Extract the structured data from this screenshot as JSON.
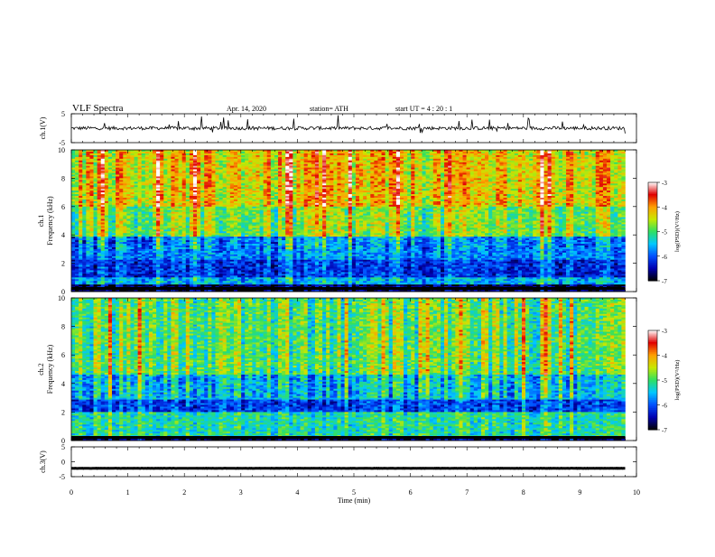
{
  "header": {
    "title": "VLF  Spectra",
    "date": "Apr. 14, 2020",
    "station": "station= ATH",
    "start": "start  UT  =   4  : 20 : 1"
  },
  "chart_data": [
    {
      "type": "line",
      "panel": "channel-1-waveform",
      "ylabel": "ch.1(V)",
      "x_range": [
        0,
        10
      ],
      "ylim": [
        -5,
        5
      ],
      "y_ticks": [
        "5",
        "-5"
      ],
      "description_values": {
        "mean": 0,
        "noise_amplitude": 1.2,
        "end_time_min": 9.8
      }
    },
    {
      "type": "heatmap",
      "panel": "channel-1-spectrogram",
      "ylabel": "ch.1\nFrequency  (kHz)",
      "x_range": [
        0,
        10
      ],
      "ylim": [
        0,
        10
      ],
      "y_ticks": [
        "0",
        "2",
        "4",
        "6",
        "8",
        "10"
      ],
      "colorbar": {
        "label": "log(PSD)(V²/Hz)",
        "range": [
          -7,
          -3
        ],
        "ticks": [
          "-3",
          "-4",
          "-5",
          "-6",
          "-7"
        ]
      },
      "bands": [
        {
          "from_khz": 0,
          "to_khz": 0.5,
          "level": -6.8
        },
        {
          "from_khz": 0.5,
          "to_khz": 1.0,
          "level": -5.6
        },
        {
          "from_khz": 1.0,
          "to_khz": 2.2,
          "level": -6.2
        },
        {
          "from_khz": 2.2,
          "to_khz": 3.9,
          "level": -5.8
        },
        {
          "from_khz": 3.9,
          "to_khz": 6.0,
          "level": -4.8
        },
        {
          "from_khz": 6.0,
          "to_khz": 10.0,
          "level": -4.3
        }
      ]
    },
    {
      "type": "heatmap",
      "panel": "channel-2-spectrogram",
      "ylabel": "ch.2\nFrequency  (kHz)",
      "x_range": [
        0,
        10
      ],
      "ylim": [
        0,
        10
      ],
      "y_ticks": [
        "0",
        "2",
        "4",
        "6",
        "8",
        "10"
      ],
      "colorbar": {
        "label": "log(PSD)(V²/Hz)",
        "range": [
          -7,
          -3
        ],
        "ticks": [
          "-3",
          "-4",
          "-5",
          "-6",
          "-7"
        ]
      },
      "bands": [
        {
          "from_khz": 0,
          "to_khz": 0.3,
          "level": -6.8
        },
        {
          "from_khz": 0.3,
          "to_khz": 2.0,
          "level": -5.2
        },
        {
          "from_khz": 2.0,
          "to_khz": 2.9,
          "level": -6.1
        },
        {
          "from_khz": 2.9,
          "to_khz": 4.6,
          "level": -5.5
        },
        {
          "from_khz": 4.6,
          "to_khz": 10.0,
          "level": -4.9
        }
      ]
    },
    {
      "type": "line",
      "panel": "channel-3-waveform",
      "ylabel": "ch.3(V)",
      "x_range": [
        0,
        10
      ],
      "ylim": [
        -5,
        5
      ],
      "y_ticks": [
        "5",
        "0",
        "-5"
      ],
      "description_values": {
        "mean": -2.2,
        "noise_amplitude": 0.1,
        "end_time_min": 9.8
      }
    }
  ],
  "x_axis": {
    "label": "Time  (min)",
    "ticks": [
      "0",
      "1",
      "2",
      "3",
      "4",
      "5",
      "6",
      "7",
      "8",
      "9",
      "10"
    ]
  },
  "colors": {
    "colormap": [
      "#000000",
      "#0000b0",
      "#0050ff",
      "#00c8ff",
      "#30e060",
      "#c8e800",
      "#ffa000",
      "#e00000",
      "#ffffff"
    ]
  }
}
